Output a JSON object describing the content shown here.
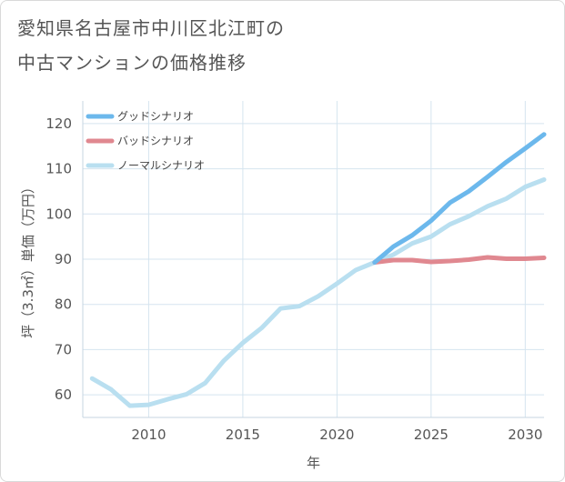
{
  "title_lines": [
    "愛知県名古屋市中川区北江町の",
    "中古マンションの価格推移"
  ],
  "chart_data": {
    "type": "line",
    "title": "愛知県名古屋市中川区北江町の中古マンションの価格推移",
    "xlabel": "年",
    "ylabel": "坪（3.3㎡）単価（万円）",
    "xlim": [
      2006.5,
      2031
    ],
    "ylim": [
      55,
      125
    ],
    "x_ticks": [
      2010,
      2015,
      2020,
      2025,
      2030
    ],
    "y_ticks": [
      60,
      70,
      80,
      90,
      100,
      110,
      120
    ],
    "grid": true,
    "legend_position": "top-left",
    "series": [
      {
        "name": "グッドシナリオ",
        "color": "#6cb8ec",
        "x": [
          2022,
          2023,
          2024,
          2025,
          2026,
          2027,
          2028,
          2029,
          2030,
          2031
        ],
        "y": [
          89.3,
          92.8,
          95.3,
          98.5,
          102.5,
          105.0,
          108.2,
          111.5,
          114.5,
          117.6
        ]
      },
      {
        "name": "バッドシナリオ",
        "color": "#e08890",
        "x": [
          2022,
          2023,
          2024,
          2025,
          2026,
          2027,
          2028,
          2029,
          2030,
          2031
        ],
        "y": [
          89.3,
          89.8,
          89.8,
          89.4,
          89.6,
          89.9,
          90.4,
          90.1,
          90.1,
          90.3
        ]
      },
      {
        "name": "ノーマルシナリオ",
        "color": "#b9dff0",
        "x": [
          2007,
          2008,
          2009,
          2010,
          2011,
          2012,
          2013,
          2014,
          2015,
          2016,
          2017,
          2018,
          2019,
          2020,
          2021,
          2022,
          2023,
          2024,
          2025,
          2026,
          2027,
          2028,
          2029,
          2030,
          2031
        ],
        "y": [
          63.6,
          61.2,
          57.6,
          57.8,
          59.0,
          60.1,
          62.6,
          67.6,
          71.5,
          74.8,
          79.1,
          79.6,
          81.8,
          84.6,
          87.6,
          89.3,
          91.0,
          93.5,
          95.0,
          97.7,
          99.5,
          101.7,
          103.4,
          106.0,
          107.6
        ]
      }
    ]
  }
}
